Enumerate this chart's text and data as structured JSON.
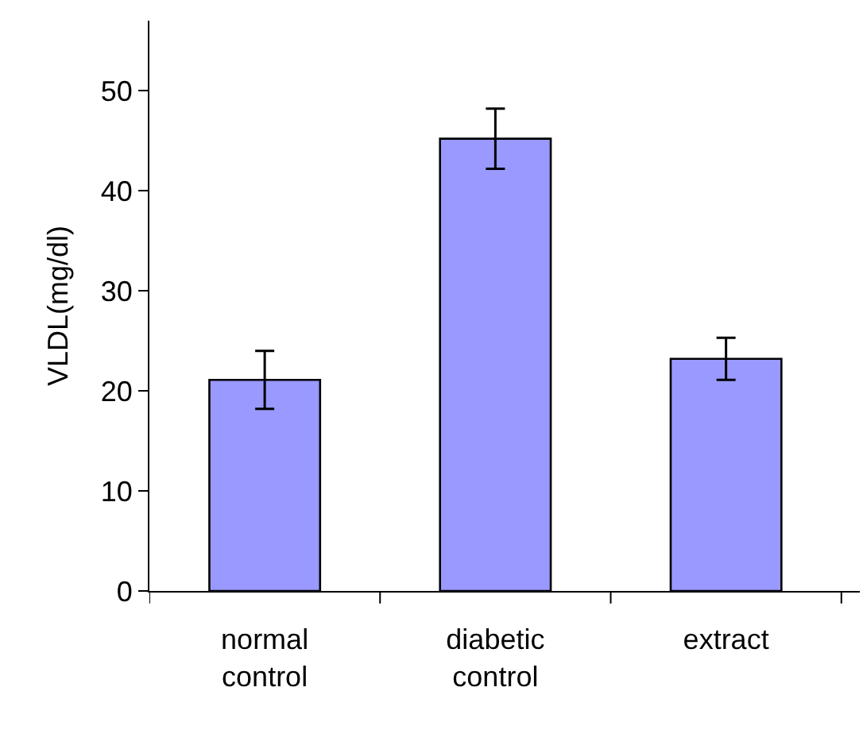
{
  "chart_data": {
    "type": "bar",
    "ylabel": "VLDL(mg/dl)",
    "categories": [
      "normal control",
      "diabetic control",
      "extract"
    ],
    "values": [
      21.1,
      45.2,
      23.2
    ],
    "errors": [
      2.9,
      3.0,
      2.1
    ],
    "color": "#9999ff",
    "ylim": [
      0,
      57
    ],
    "yticks": [
      0,
      10,
      20,
      30,
      40,
      50
    ]
  }
}
